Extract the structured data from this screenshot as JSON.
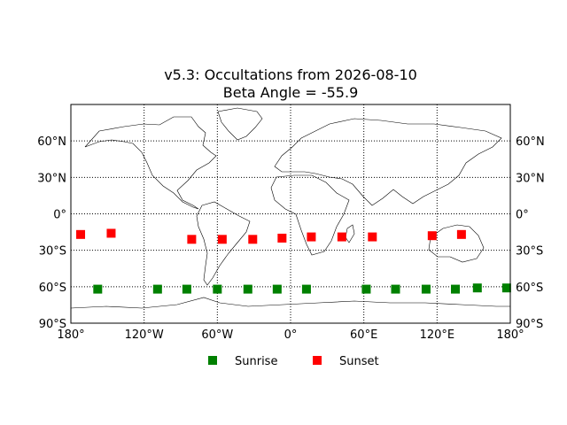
{
  "chart_data": {
    "type": "scatter",
    "title_line1": "v5.3: Occultations from 2026-08-10",
    "title_line2": "Beta Angle = -55.9",
    "projection": "equirectangular",
    "xlim": [
      -180,
      180
    ],
    "ylim": [
      -90,
      90
    ],
    "grid": true,
    "grid_style": "dotted",
    "legend_position": "bottom-center",
    "x_ticks": [
      {
        "value": -180,
        "label": "180°"
      },
      {
        "value": -120,
        "label": "120°W"
      },
      {
        "value": -60,
        "label": "60°W"
      },
      {
        "value": 0,
        "label": "0°"
      },
      {
        "value": 60,
        "label": "60°E"
      },
      {
        "value": 120,
        "label": "120°E"
      },
      {
        "value": 180,
        "label": "180°"
      }
    ],
    "y_ticks": [
      {
        "value": 60,
        "label": "60°N"
      },
      {
        "value": 30,
        "label": "30°N"
      },
      {
        "value": 0,
        "label": "0°"
      },
      {
        "value": -30,
        "label": "30°S"
      },
      {
        "value": -60,
        "label": "60°S"
      },
      {
        "value": -90,
        "label": "90°S"
      }
    ],
    "series": [
      {
        "name": "Sunrise",
        "color": "#008000",
        "marker": "square",
        "points": [
          {
            "lon": -158,
            "lat": -62
          },
          {
            "lon": -109,
            "lat": -62
          },
          {
            "lon": -85,
            "lat": -62
          },
          {
            "lon": -60,
            "lat": -62
          },
          {
            "lon": -35,
            "lat": -62
          },
          {
            "lon": -11,
            "lat": -62
          },
          {
            "lon": 13,
            "lat": -62
          },
          {
            "lon": 62,
            "lat": -62
          },
          {
            "lon": 86,
            "lat": -62
          },
          {
            "lon": 111,
            "lat": -62
          },
          {
            "lon": 135,
            "lat": -62
          },
          {
            "lon": 153,
            "lat": -61
          },
          {
            "lon": 177,
            "lat": -61
          }
        ]
      },
      {
        "name": "Sunset",
        "color": "#ff0000",
        "marker": "square",
        "points": [
          {
            "lon": -172,
            "lat": -17
          },
          {
            "lon": -147,
            "lat": -16
          },
          {
            "lon": -81,
            "lat": -21
          },
          {
            "lon": -56,
            "lat": -21
          },
          {
            "lon": -31,
            "lat": -21
          },
          {
            "lon": -7,
            "lat": -20
          },
          {
            "lon": 17,
            "lat": -19
          },
          {
            "lon": 42,
            "lat": -19
          },
          {
            "lon": 67,
            "lat": -19
          },
          {
            "lon": 116,
            "lat": -18
          },
          {
            "lon": 140,
            "lat": -17
          }
        ]
      }
    ]
  }
}
